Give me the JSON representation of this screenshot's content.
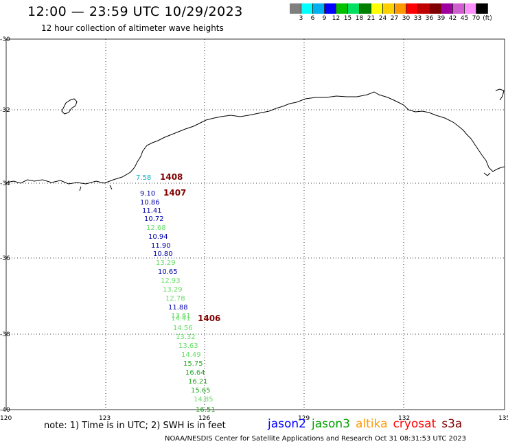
{
  "title": "12:00 — 23:59 UTC 10/29/2023",
  "subtitle": "12 hour collection of altimeter wave heights",
  "colorbar": {
    "colors": [
      "#808080",
      "#00ffff",
      "#00b0f0",
      "#0000ff",
      "#00c000",
      "#00e060",
      "#008000",
      "#ffff00",
      "#ffd000",
      "#ff9900",
      "#ff0000",
      "#c00000",
      "#800000",
      "#a000a0",
      "#d060d0",
      "#ff90ff",
      "#000000"
    ],
    "labels": [
      "3",
      "6",
      "9",
      "12",
      "15",
      "18",
      "21",
      "24",
      "27",
      "30",
      "33",
      "36",
      "39",
      "42",
      "45",
      "70"
    ],
    "unit": "(ft)"
  },
  "axes": {
    "lat_labels": [
      "-30",
      "-32",
      "-34",
      "-36",
      "-38",
      "-40"
    ],
    "lon_labels": [
      "120",
      "123",
      "126",
      "129",
      "132",
      "135"
    ]
  },
  "pass_labels": [
    "1408",
    "1407",
    "1406"
  ],
  "wave_heights": [
    {
      "value": "7.58",
      "color": "#00b0c8"
    },
    {
      "value": "9.10",
      "color": "#0000aa"
    },
    {
      "value": "10.86",
      "color": "#0000aa"
    },
    {
      "value": "11.41",
      "color": "#0000aa"
    },
    {
      "value": "10.72",
      "color": "#0000aa"
    },
    {
      "value": "12.68",
      "color": "#66dd66"
    },
    {
      "value": "10.94",
      "color": "#0000aa"
    },
    {
      "value": "11.90",
      "color": "#0000aa"
    },
    {
      "value": "10.80",
      "color": "#0000aa"
    },
    {
      "value": "13.29",
      "color": "#66dd66"
    },
    {
      "value": "10.65",
      "color": "#0000aa"
    },
    {
      "value": "12.93",
      "color": "#66dd66"
    },
    {
      "value": "13.29",
      "color": "#66dd66"
    },
    {
      "value": "12.78",
      "color": "#66dd66"
    },
    {
      "value": "11.88",
      "color": "#0000aa"
    },
    {
      "value": "13.61",
      "color": "#66dd66"
    },
    {
      "value": "14.41",
      "color": "#66dd66"
    },
    {
      "value": "14.56",
      "color": "#66dd66"
    },
    {
      "value": "13.32",
      "color": "#66dd66"
    },
    {
      "value": "13.63",
      "color": "#66dd66"
    },
    {
      "value": "14.49",
      "color": "#66dd66"
    },
    {
      "value": "15.75",
      "color": "#22aa22"
    },
    {
      "value": "16.64",
      "color": "#22aa22"
    },
    {
      "value": "16.21",
      "color": "#22aa22"
    },
    {
      "value": "15.65",
      "color": "#22aa22"
    },
    {
      "value": "14.85",
      "color": "#66dd66"
    },
    {
      "value": "16.51",
      "color": "#22aa22"
    }
  ],
  "note": "note:  1) Time is in UTC;  2) SWH is in feet",
  "legend": [
    {
      "name": "jason2",
      "color": "#0000ff"
    },
    {
      "name": "jason3",
      "color": "#00a000"
    },
    {
      "name": "altika",
      "color": "#ff9900"
    },
    {
      "name": "cryosat",
      "color": "#ff0000"
    },
    {
      "name": "s3a",
      "color": "#800000"
    }
  ],
  "credit": "NOAA/NESDIS Center for Satellite Applications and Research     Oct 31 08:31:53 UTC 2023"
}
